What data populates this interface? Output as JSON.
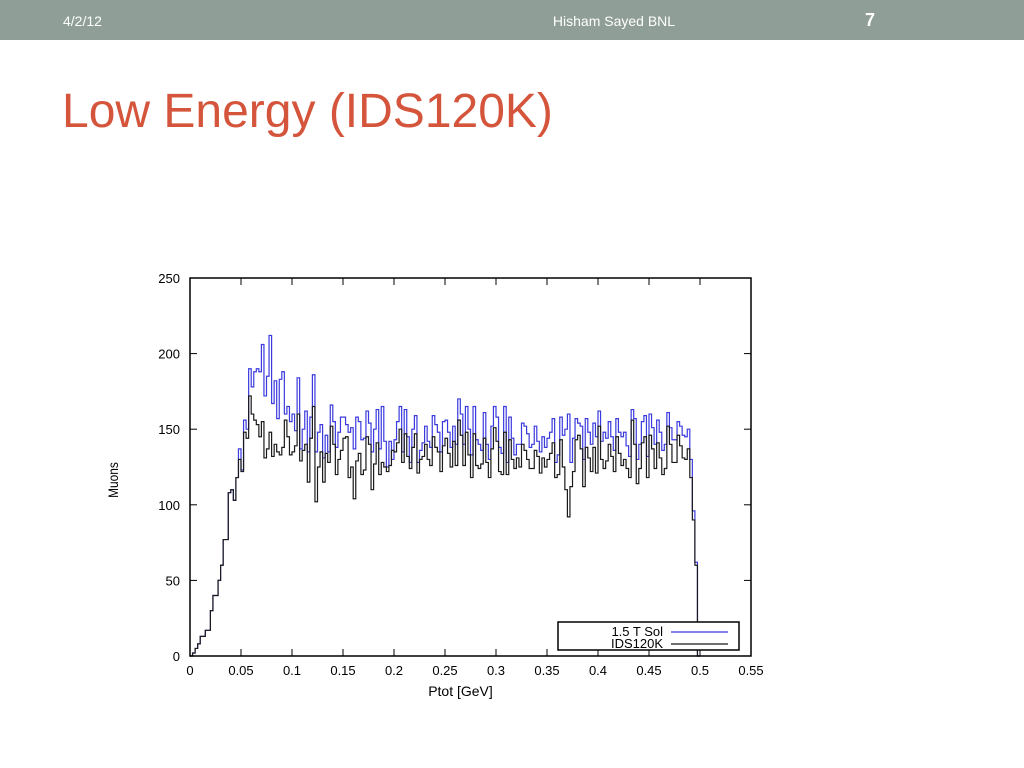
{
  "header": {
    "date": "4/2/12",
    "author": "Hisham Sayed BNL",
    "page_number": "7"
  },
  "slide": {
    "title": "Low Energy (IDS120K)"
  },
  "chart_data": {
    "type": "line",
    "xlabel": "Ptot [GeV]",
    "ylabel": "Muons",
    "xlim": [
      0,
      0.55
    ],
    "ylim": [
      0,
      250
    ],
    "xticks": [
      "0",
      "0.05",
      "0.1",
      "0.15",
      "0.2",
      "0.25",
      "0.3",
      "0.35",
      "0.4",
      "0.45",
      "0.5",
      "0.55"
    ],
    "yticks": [
      "0",
      "50",
      "100",
      "150",
      "200",
      "250"
    ],
    "legend_position": "bottom-right",
    "bin_width": 0.0025,
    "series": [
      {
        "name": "1.5 T Sol",
        "color": "#3a3adf",
        "values": [
          0,
          2,
          5,
          8,
          13,
          13,
          17,
          17,
          30,
          40,
          40,
          50,
          60,
          77,
          77,
          108,
          110,
          103,
          118,
          137,
          123,
          156,
          150,
          190,
          178,
          188,
          190,
          188,
          206,
          172,
          185,
          212,
          167,
          182,
          157,
          183,
          188,
          160,
          165,
          155,
          160,
          149,
          184,
          137,
          150,
          162,
          135,
          158,
          186,
          135,
          148,
          153,
          131,
          146,
          135,
          166,
          155,
          138,
          148,
          158,
          158,
          153,
          148,
          151,
          137,
          158,
          155,
          143,
          144,
          162,
          154,
          135,
          150,
          163,
          137,
          165,
          142,
          125,
          142,
          130,
          143,
          155,
          165,
          135,
          163,
          145,
          128,
          150,
          159,
          128,
          136,
          141,
          152,
          142,
          138,
          159,
          153,
          148,
          135,
          155,
          156,
          148,
          138,
          152,
          140,
          170,
          160,
          140,
          165,
          150,
          133,
          165,
          143,
          140,
          136,
          161,
          140,
          130,
          152,
          165,
          158,
          138,
          134,
          165,
          128,
          158,
          144,
          133,
          140,
          140,
          154,
          152,
          147,
          138,
          140,
          152,
          142,
          135,
          145,
          138,
          144,
          148,
          157,
          128,
          133,
          158,
          146,
          150,
          160,
          128,
          144,
          157,
          154,
          152,
          130,
          157,
          148,
          140,
          154,
          145,
          162,
          142,
          148,
          144,
          155,
          145,
          136,
          157,
          148,
          145,
          148,
          139,
          132,
          163,
          157,
          130,
          140,
          155,
          159,
          132,
          160,
          151,
          140,
          156,
          148,
          136,
          140,
          161,
          151,
          143,
          143,
          155,
          152,
          146,
          145,
          150,
          130,
          96,
          62,
          0
        ]
      },
      {
        "name": "IDS120K",
        "color": "#1a1a1a",
        "values": [
          0,
          2,
          5,
          8,
          13,
          13,
          17,
          17,
          30,
          40,
          40,
          50,
          60,
          77,
          77,
          108,
          110,
          103,
          118,
          130,
          122,
          148,
          144,
          172,
          160,
          156,
          153,
          145,
          155,
          131,
          137,
          148,
          132,
          140,
          135,
          133,
          138,
          156,
          145,
          133,
          135,
          139,
          160,
          129,
          136,
          140,
          115,
          144,
          165,
          102,
          125,
          135,
          115,
          134,
          128,
          152,
          140,
          120,
          130,
          136,
          144,
          145,
          118,
          125,
          104,
          129,
          134,
          120,
          123,
          145,
          140,
          110,
          127,
          141,
          120,
          128,
          125,
          122,
          126,
          136,
          135,
          141,
          150,
          128,
          147,
          132,
          124,
          138,
          147,
          121,
          130,
          132,
          140,
          130,
          126,
          145,
          138,
          135,
          122,
          139,
          144,
          134,
          125,
          142,
          126,
          156,
          146,
          126,
          148,
          133,
          118,
          147,
          126,
          124,
          127,
          144,
          128,
          118,
          137,
          151,
          142,
          122,
          120,
          148,
          120,
          143,
          130,
          124,
          131,
          125,
          140,
          136,
          130,
          124,
          124,
          136,
          132,
          121,
          131,
          125,
          130,
          134,
          141,
          118,
          120,
          143,
          125,
          110,
          92,
          112,
          122,
          143,
          146,
          137,
          112,
          138,
          131,
          122,
          138,
          121,
          152,
          130,
          124,
          129,
          140,
          132,
          122,
          145,
          134,
          126,
          130,
          124,
          118,
          156,
          140,
          114,
          124,
          141,
          145,
          118,
          146,
          137,
          124,
          141,
          131,
          120,
          124,
          152,
          140,
          128,
          128,
          146,
          139,
          131,
          130,
          137,
          118,
          90,
          60,
          0
        ]
      }
    ]
  }
}
